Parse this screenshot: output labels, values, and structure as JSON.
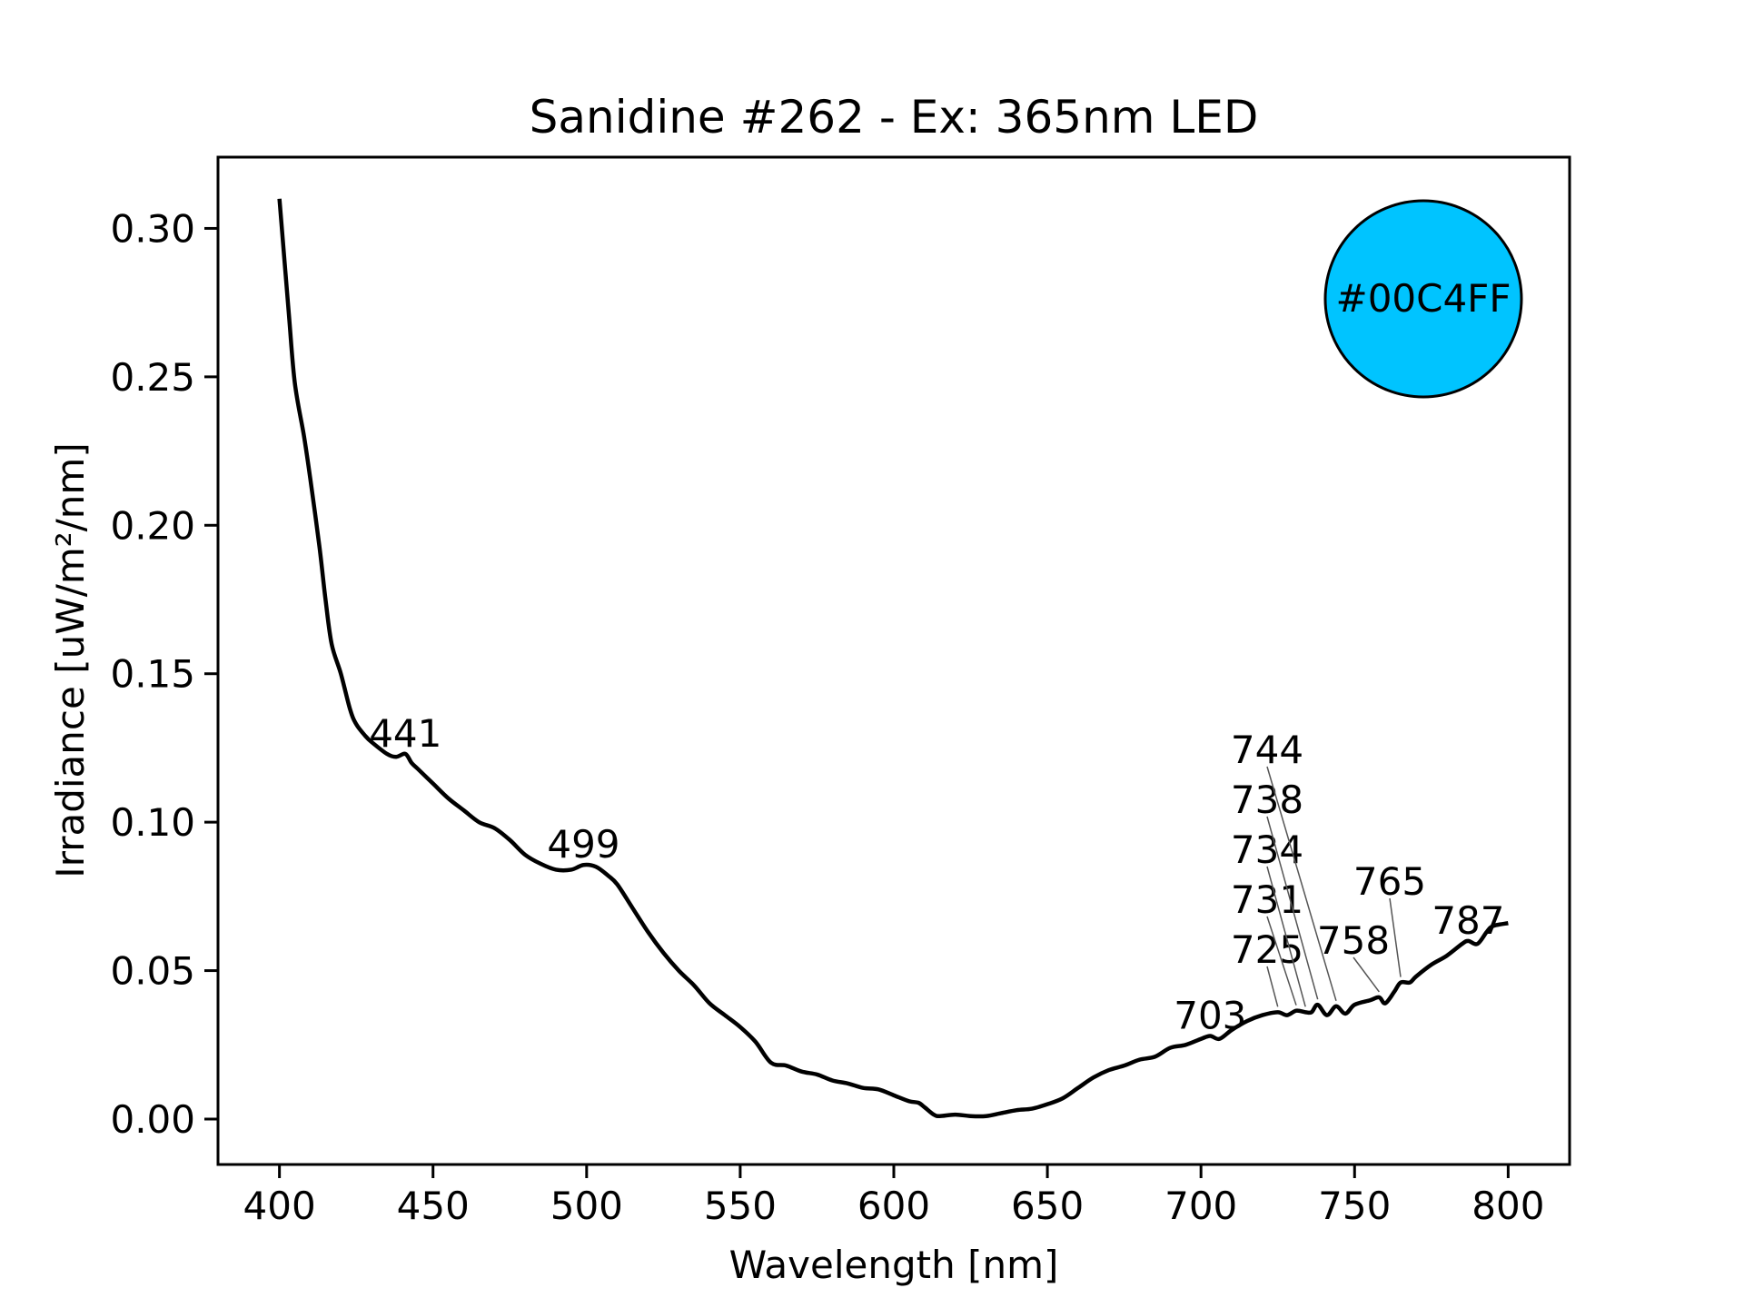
{
  "chart_data": {
    "type": "line",
    "title": "Sanidine #262 - Ex: 365nm LED",
    "xlabel": "Wavelength [nm]",
    "ylabel": "Irradiance [uW/m²/nm]",
    "xlim": [
      380,
      820
    ],
    "ylim": [
      -0.0153,
      0.324
    ],
    "xticks": [
      400,
      450,
      500,
      550,
      600,
      650,
      700,
      750,
      800
    ],
    "xtick_labels": [
      "400",
      "450",
      "500",
      "550",
      "600",
      "650",
      "700",
      "750",
      "800"
    ],
    "yticks": [
      0,
      0.05,
      0.1,
      0.15,
      0.2,
      0.25,
      0.3
    ],
    "ytick_labels": [
      "0.00",
      "0.05",
      "0.10",
      "0.15",
      "0.20",
      "0.25",
      "0.30"
    ],
    "grid": false,
    "series": [
      {
        "name": "spectrum",
        "color": "#000000",
        "x": [
          400,
          403,
          405,
          408,
          410,
          413,
          415,
          417,
          420,
          423,
          425,
          428,
          430,
          435,
          438,
          441,
          443,
          445,
          450,
          455,
          460,
          465,
          470,
          475,
          480,
          485,
          490,
          495,
          499,
          503,
          507,
          510,
          515,
          520,
          525,
          530,
          535,
          540,
          545,
          550,
          555,
          560,
          565,
          570,
          575,
          580,
          585,
          590,
          595,
          600,
          605,
          608,
          610,
          613,
          615,
          620,
          625,
          630,
          635,
          640,
          645,
          650,
          655,
          660,
          665,
          670,
          675,
          680,
          685,
          690,
          695,
          700,
          703,
          706,
          710,
          715,
          720,
          725,
          728,
          731,
          734,
          736,
          738,
          741,
          744,
          747,
          750,
          755,
          758,
          760,
          763,
          765,
          768,
          770,
          775,
          780,
          785,
          787,
          790,
          793,
          795,
          800
        ],
        "y": [
          0.31,
          0.272,
          0.248,
          0.23,
          0.216,
          0.193,
          0.175,
          0.16,
          0.15,
          0.138,
          0.133,
          0.129,
          0.127,
          0.123,
          0.122,
          0.123,
          0.12,
          0.118,
          0.113,
          0.108,
          0.104,
          0.1,
          0.098,
          0.094,
          0.089,
          0.086,
          0.084,
          0.084,
          0.0856,
          0.085,
          0.082,
          0.079,
          0.071,
          0.063,
          0.056,
          0.05,
          0.045,
          0.039,
          0.035,
          0.031,
          0.026,
          0.019,
          0.018,
          0.016,
          0.015,
          0.013,
          0.012,
          0.0105,
          0.01,
          0.008,
          0.006,
          0.0055,
          0.004,
          0.0015,
          0.001,
          0.0015,
          0.001,
          0.001,
          0.002,
          0.003,
          0.0035,
          0.005,
          0.007,
          0.0105,
          0.014,
          0.0165,
          0.018,
          0.02,
          0.021,
          0.024,
          0.025,
          0.027,
          0.028,
          0.027,
          0.03,
          0.033,
          0.035,
          0.036,
          0.035,
          0.0365,
          0.036,
          0.036,
          0.0385,
          0.035,
          0.038,
          0.0355,
          0.0385,
          0.04,
          0.041,
          0.039,
          0.043,
          0.046,
          0.046,
          0.048,
          0.052,
          0.055,
          0.059,
          0.06,
          0.059,
          0.063,
          0.065,
          0.066
        ]
      }
    ],
    "annotations": [
      {
        "text": "441",
        "x": 441,
        "y": 0.123
      },
      {
        "text": "499",
        "x": 499,
        "y": 0.0856
      },
      {
        "text": "703",
        "x": 703,
        "y": 0.028
      },
      {
        "text": "725",
        "x": 725,
        "y": 0.036
      },
      {
        "text": "731",
        "x": 731,
        "y": 0.0365
      },
      {
        "text": "734",
        "x": 734,
        "y": 0.036
      },
      {
        "text": "738",
        "x": 738,
        "y": 0.0385
      },
      {
        "text": "744",
        "x": 744,
        "y": 0.038
      },
      {
        "text": "758",
        "x": 758,
        "y": 0.041
      },
      {
        "text": "765",
        "x": 765,
        "y": 0.046
      },
      {
        "text": "787",
        "x": 787,
        "y": 0.06
      }
    ],
    "color_swatch": {
      "label": "#00C4FF",
      "color": "#00C4FF",
      "placement": "top-right"
    }
  }
}
